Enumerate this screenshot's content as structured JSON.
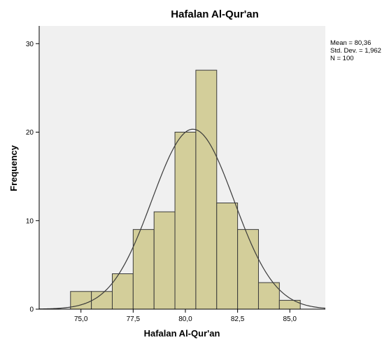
{
  "chart_data": {
    "type": "bar",
    "subtype": "histogram",
    "title": "Hafalan Al-Qur'an",
    "xlabel": "Hafalan Al-Qur'an",
    "ylabel": "Frequency",
    "xlim": [
      73.0,
      86.7
    ],
    "ylim": [
      0,
      32
    ],
    "x_ticks": [
      75.0,
      77.5,
      80.0,
      82.5,
      85.0
    ],
    "x_tick_labels": [
      "75,0",
      "77,5",
      "80,0",
      "82,5",
      "85,0"
    ],
    "y_ticks": [
      0,
      10,
      20,
      30
    ],
    "y_tick_labels": [
      "0",
      "10",
      "20",
      "30"
    ],
    "bin_width": 1.0,
    "bin_starts": [
      74.5,
      75.5,
      76.5,
      77.5,
      78.5,
      79.5,
      80.5,
      81.5,
      82.5,
      83.5,
      84.5
    ],
    "values": [
      2,
      2,
      4,
      9,
      11,
      20,
      27,
      12,
      9,
      3,
      1
    ],
    "normal_curve": {
      "mean": 80.36,
      "sd": 1.962,
      "n": 100
    },
    "stats_lines": [
      "Mean = 80,36",
      "Std. Dev. = 1,962",
      "N = 100"
    ],
    "grid": false,
    "legend": "none"
  },
  "colors": {
    "plot_background": "#f0f0f0",
    "bar_fill": "#d3ce9a",
    "bar_stroke": "#3a3a3a",
    "curve": "#3a3a3a",
    "axis": "#000000"
  }
}
